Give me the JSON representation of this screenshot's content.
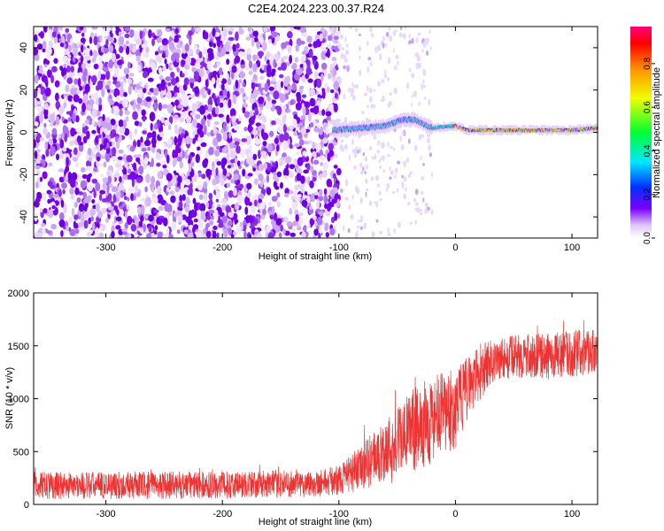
{
  "title": "C2E4.2024.223.00.37.R24",
  "chart_data": [
    {
      "type": "heatmap",
      "xlabel": "Height of straight line (km)",
      "ylabel": "Frequency (Hz)",
      "xlim": [
        -362,
        122
      ],
      "ylim": [
        -50,
        50
      ],
      "xticks": [
        -300,
        -200,
        -100,
        0,
        100
      ],
      "yticks": [
        -40,
        -20,
        0,
        20,
        40
      ],
      "colorbar": {
        "label": "Normalized spectral amplitude",
        "range": [
          0,
          0.97
        ],
        "ticks": [
          0.0,
          0.2,
          0.4,
          0.6,
          0.8
        ],
        "colormap": [
          "#ffffff",
          "#e0c8f8",
          "#7b00ff",
          "#0030ff",
          "#00e8ff",
          "#00ff30",
          "#f0ff00",
          "#ff9000",
          "#ff0000",
          "#ff0080"
        ]
      },
      "noise_region_x": [
        -362,
        -100
      ],
      "signal_track": [
        {
          "x": -105,
          "freq": 1
        },
        {
          "x": -80,
          "freq": 2
        },
        {
          "x": -60,
          "freq": 3
        },
        {
          "x": -45,
          "freq": 6
        },
        {
          "x": -35,
          "freq": 6
        },
        {
          "x": -20,
          "freq": 2
        },
        {
          "x": 0,
          "freq": 3
        },
        {
          "x": 10,
          "freq": 1
        },
        {
          "x": 50,
          "freq": 1
        },
        {
          "x": 100,
          "freq": 1
        },
        {
          "x": 122,
          "freq": 2
        }
      ]
    },
    {
      "type": "line",
      "xlabel": "Height of straight line (km)",
      "ylabel": "SNR (10 * v/v)",
      "xlim": [
        -362,
        122
      ],
      "ylim": [
        0,
        2000
      ],
      "xticks": [
        -300,
        -200,
        -100,
        0,
        100
      ],
      "yticks": [
        0,
        500,
        1000,
        1500,
        2000
      ],
      "color": "#ee3333",
      "envelope": [
        {
          "x": -362,
          "mean": 180,
          "spread": 130
        },
        {
          "x": -300,
          "mean": 180,
          "spread": 130
        },
        {
          "x": -200,
          "mean": 185,
          "spread": 130
        },
        {
          "x": -120,
          "mean": 200,
          "spread": 130
        },
        {
          "x": -100,
          "mean": 230,
          "spread": 140
        },
        {
          "x": -80,
          "mean": 350,
          "spread": 220
        },
        {
          "x": -60,
          "mean": 520,
          "spread": 300
        },
        {
          "x": -40,
          "mean": 680,
          "spread": 380
        },
        {
          "x": -20,
          "mean": 800,
          "spread": 420
        },
        {
          "x": 0,
          "mean": 900,
          "spread": 380
        },
        {
          "x": 10,
          "mean": 1100,
          "spread": 300
        },
        {
          "x": 30,
          "mean": 1350,
          "spread": 220
        },
        {
          "x": 50,
          "mean": 1400,
          "spread": 200
        },
        {
          "x": 80,
          "mean": 1400,
          "spread": 220
        },
        {
          "x": 100,
          "mean": 1430,
          "spread": 220
        },
        {
          "x": 122,
          "mean": 1450,
          "spread": 220
        }
      ]
    }
  ]
}
